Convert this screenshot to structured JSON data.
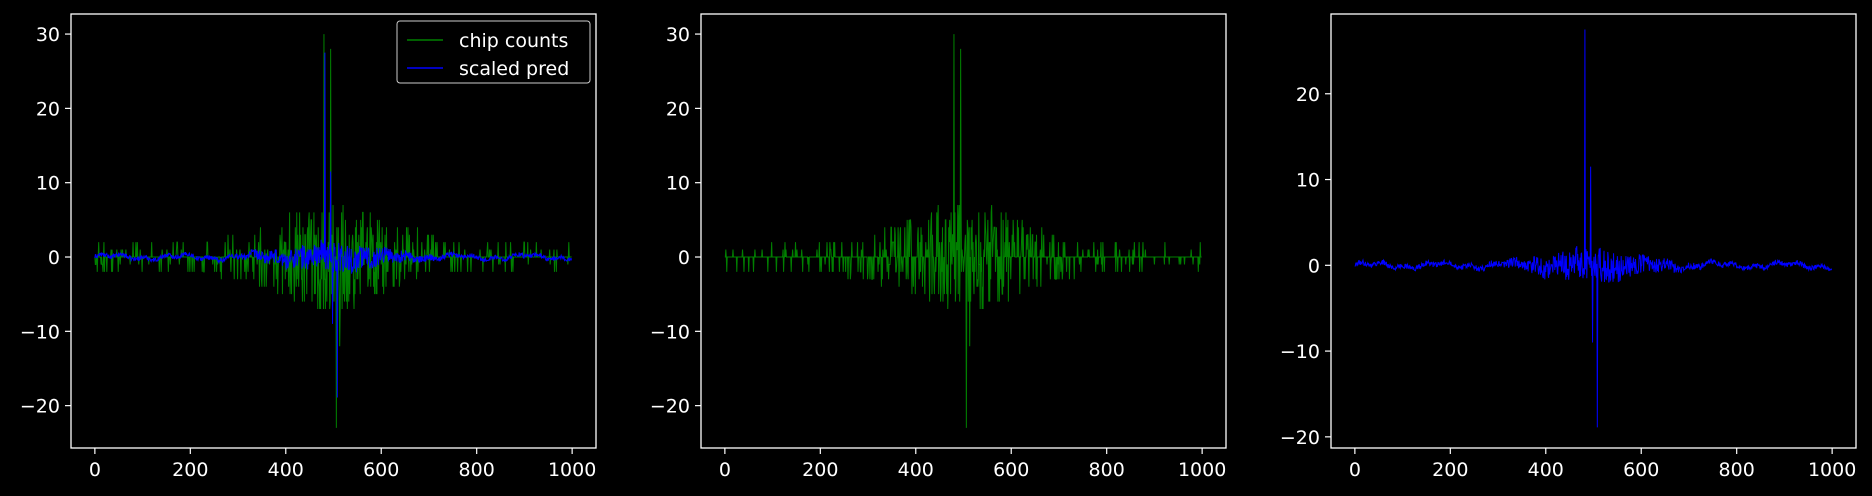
{
  "figure": {
    "background": "#000000",
    "foreground": "#ffffff"
  },
  "chart_data": [
    {
      "type": "line",
      "title": "",
      "xlabel": "",
      "ylabel": "",
      "xlim": [
        -50,
        1050
      ],
      "ylim": [
        -25.7,
        32.7
      ],
      "xticks": [
        0,
        200,
        400,
        600,
        800,
        1000
      ],
      "yticks": [
        -20,
        -10,
        0,
        10,
        20,
        30
      ],
      "xtick_labels": [
        "0",
        "200",
        "400",
        "600",
        "800",
        "1000"
      ],
      "ytick_labels": [
        "−20",
        "−10",
        "0",
        "10",
        "20",
        "30"
      ],
      "legend": {
        "position": "top-right",
        "entries": [
          "chip counts",
          "scaled pred"
        ]
      },
      "series": [
        {
          "name": "chip counts",
          "color": "#008000",
          "pattern": "counts",
          "peaks": [
            [
              480,
              30
            ],
            [
              494,
              28
            ],
            [
              506,
              -23
            ],
            [
              513,
              -12
            ]
          ],
          "spread": 3,
          "center": 500,
          "width": 120
        },
        {
          "name": "scaled pred",
          "color": "#0000ff",
          "pattern": "pred",
          "peaks": [
            [
              482,
              27.5
            ],
            [
              494,
              11.5
            ],
            [
              508,
              -18.9
            ],
            [
              498,
              -9
            ]
          ],
          "spread": 1,
          "center": 500,
          "width": 90
        }
      ]
    },
    {
      "type": "line",
      "title": "",
      "xlabel": "",
      "ylabel": "",
      "xlim": [
        -50,
        1050
      ],
      "ylim": [
        -25.7,
        32.7
      ],
      "xticks": [
        0,
        200,
        400,
        600,
        800,
        1000
      ],
      "yticks": [
        -20,
        -10,
        0,
        10,
        20,
        30
      ],
      "xtick_labels": [
        "0",
        "200",
        "400",
        "600",
        "800",
        "1000"
      ],
      "ytick_labels": [
        "−20",
        "−10",
        "0",
        "10",
        "20",
        "30"
      ],
      "series": [
        {
          "color": "#008000",
          "pattern": "counts",
          "peaks": [
            [
              480,
              30
            ],
            [
              494,
              28
            ],
            [
              506,
              -23
            ],
            [
              513,
              -12
            ]
          ],
          "spread": 3,
          "center": 500,
          "width": 120
        }
      ]
    },
    {
      "type": "line",
      "title": "",
      "xlabel": "",
      "ylabel": "",
      "xlim": [
        -50,
        1050
      ],
      "ylim": [
        -21.3,
        29.3
      ],
      "xticks": [
        0,
        200,
        400,
        600,
        800,
        1000
      ],
      "yticks": [
        -20,
        -10,
        0,
        10,
        20
      ],
      "xtick_labels": [
        "0",
        "200",
        "400",
        "600",
        "800",
        "1000"
      ],
      "ytick_labels": [
        "−20",
        "−10",
        "0",
        "10",
        "20"
      ],
      "series": [
        {
          "color": "#0000ff",
          "pattern": "pred",
          "peaks": [
            [
              482,
              27.5
            ],
            [
              494,
              11.5
            ],
            [
              508,
              -18.9
            ],
            [
              498,
              -9
            ]
          ],
          "spread": 1,
          "center": 500,
          "width": 90
        }
      ]
    }
  ]
}
